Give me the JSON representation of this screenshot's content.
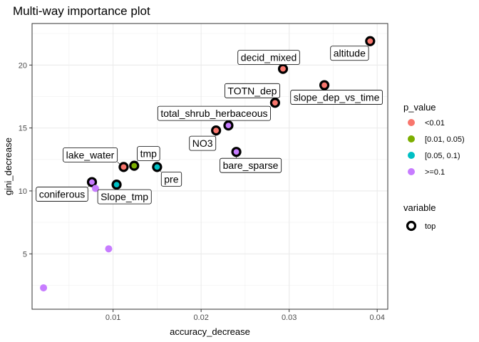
{
  "chart_data": {
    "type": "scatter",
    "title": "Multi-way importance plot",
    "xlabel": "accuracy_decrease",
    "ylabel": "gini_decrease",
    "xlim": [
      0.0008,
      0.0412
    ],
    "ylim": [
      0.6,
      23.3
    ],
    "x_ticks": [
      0.01,
      0.02,
      0.03,
      0.04
    ],
    "x_tick_labels": [
      "0.01",
      "0.02",
      "0.03",
      "0.04"
    ],
    "y_ticks": [
      5,
      10,
      15,
      20
    ],
    "y_tick_labels": [
      "5",
      "10",
      "15",
      "20"
    ],
    "grid": true,
    "legend": {
      "placement": "right",
      "color_title": "p_value",
      "color_levels": [
        {
          "label": "<0.01",
          "color": "#F8766D"
        },
        {
          "label": "[0.01, 0.05)",
          "color": "#7CAE00"
        },
        {
          "label": "[0.05, 0.1)",
          "color": "#00BFC4"
        },
        {
          "label": ">=0.1",
          "color": "#C77CFF"
        }
      ],
      "shape_title": "variable",
      "shape_levels": [
        {
          "label": "top"
        }
      ]
    },
    "points": [
      {
        "label": "altitude",
        "x": 0.0392,
        "y": 21.9,
        "p_value": "<0.01",
        "top": true
      },
      {
        "label": "decid_mixed",
        "x": 0.0293,
        "y": 19.7,
        "p_value": "<0.01",
        "top": true
      },
      {
        "label": "slope_dep_vs_time",
        "x": 0.034,
        "y": 18.4,
        "p_value": "<0.01",
        "top": true
      },
      {
        "label": "TOTN_dep",
        "x": 0.0284,
        "y": 17.0,
        "p_value": "<0.01",
        "top": true
      },
      {
        "label": "total_shrub_herbaceous",
        "x": 0.0231,
        "y": 15.2,
        "p_value": ">=0.1",
        "top": true
      },
      {
        "label": "NO3",
        "x": 0.0217,
        "y": 14.8,
        "p_value": "<0.01",
        "top": true
      },
      {
        "label": "bare_sparse",
        "x": 0.024,
        "y": 13.1,
        "p_value": ">=0.1",
        "top": true
      },
      {
        "label": "tmp",
        "x": 0.0124,
        "y": 12.0,
        "p_value": "[0.01, 0.05)",
        "top": true
      },
      {
        "label": "lake_water",
        "x": 0.0112,
        "y": 11.9,
        "p_value": "<0.01",
        "top": true
      },
      {
        "label": "pre",
        "x": 0.015,
        "y": 11.9,
        "p_value": "[0.05, 0.1)",
        "top": true
      },
      {
        "label": "coniferous",
        "x": 0.0076,
        "y": 10.7,
        "p_value": ">=0.1",
        "top": true
      },
      {
        "label": "Slope_tmp",
        "x": 0.0104,
        "y": 10.5,
        "p_value": "[0.05, 0.1)",
        "top": true
      },
      {
        "label": "",
        "x": 0.008,
        "y": 10.2,
        "p_value": ">=0.1",
        "top": false
      },
      {
        "label": "",
        "x": 0.0095,
        "y": 5.4,
        "p_value": ">=0.1",
        "top": false
      },
      {
        "label": "",
        "x": 0.0021,
        "y": 2.3,
        "p_value": ">=0.1",
        "top": false
      }
    ]
  }
}
